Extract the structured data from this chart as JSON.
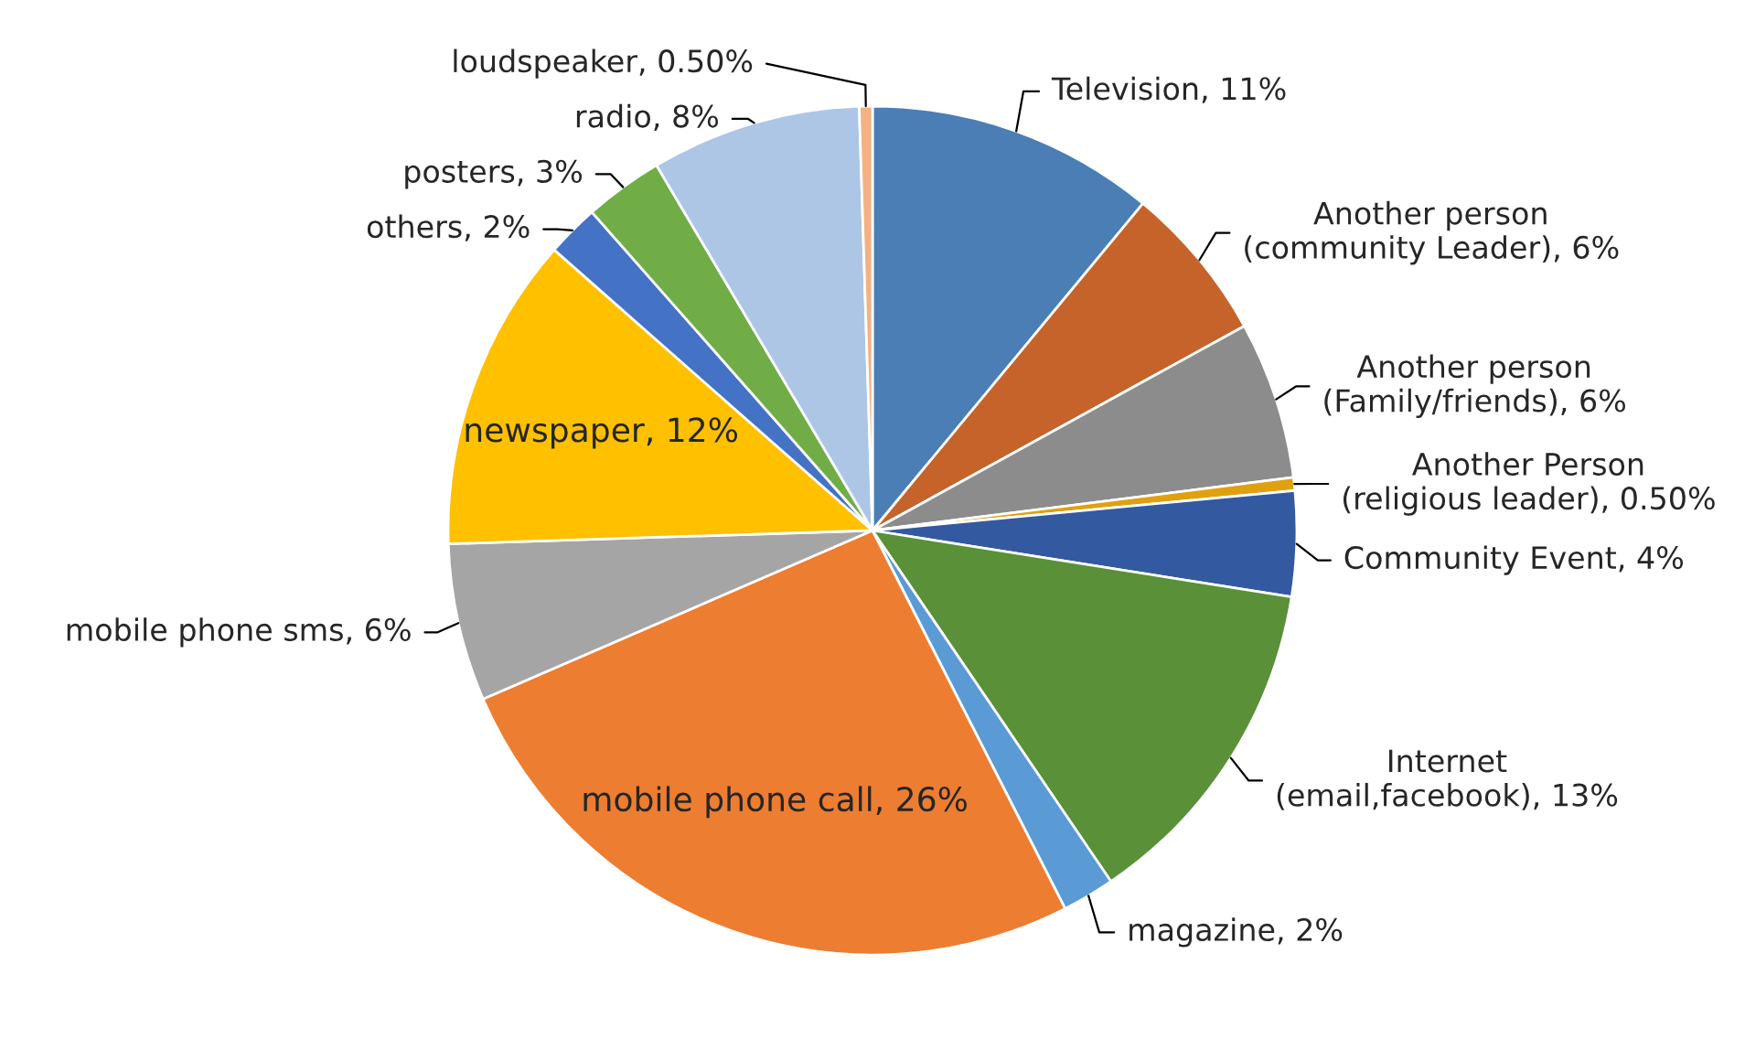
{
  "chart_data": {
    "type": "pie",
    "categories": [
      "Television",
      "Another person(community Leader)",
      "Another person(Family/friends)",
      "Another Person(religious leader)",
      "Community Event",
      "Internet(email,facebook)",
      "magazine",
      "mobile phone call",
      "mobile phone sms",
      "newspaper",
      "others",
      "posters",
      "radio",
      "loudspeaker"
    ],
    "values": [
      11,
      6,
      6,
      0.5,
      4,
      13,
      2,
      26,
      6,
      12,
      2,
      3,
      8,
      0.5
    ],
    "value_labels": [
      "11%",
      "6%",
      "6%",
      "0.50%",
      "4%",
      "13%",
      "2%",
      "26%",
      "6%",
      "12%",
      "2%",
      "3%",
      "8%",
      "0.50%"
    ],
    "colors": [
      "#4a7eb4",
      "#c5632a",
      "#8c8c8c",
      "#e0a010",
      "#3359a0",
      "#5a9038",
      "#5b9bd5",
      "#ed7d31",
      "#a5a5a5",
      "#ffc000",
      "#4472c4",
      "#70ad47",
      "#adc6e6",
      "#f4b183"
    ]
  }
}
